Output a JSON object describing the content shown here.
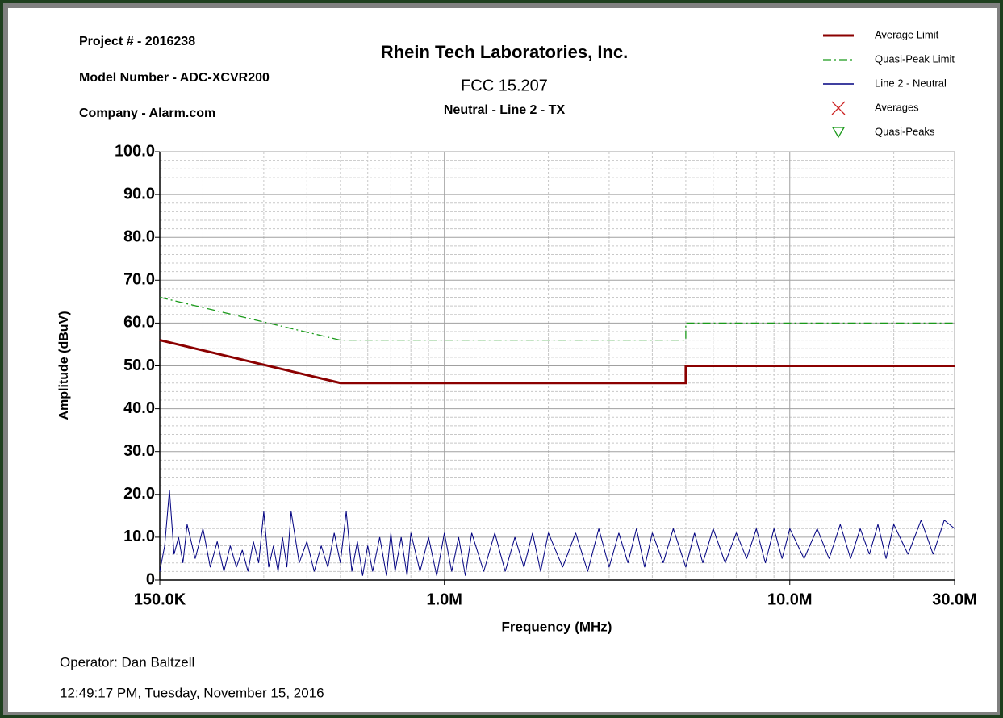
{
  "header": {
    "project": "Project # - 2016238",
    "model": "Model Number - ADC-XCVR200",
    "company": "Company - Alarm.com"
  },
  "footer": {
    "operator": "Operator: Dan Baltzell",
    "timestamp": "12:49:17 PM, Tuesday, November 15, 2016"
  },
  "chart_data": {
    "type": "line",
    "title": "Rhein Tech Laboratories, Inc.",
    "subtitle": "FCC 15.207",
    "subtitle2": "Neutral - Line 2  - TX",
    "xlabel": "Frequency (MHz)",
    "ylabel": "Amplitude (dBuV)",
    "xscale": "log",
    "xlim": [
      0.15,
      30
    ],
    "ylim": [
      0,
      100
    ],
    "xticks": [
      {
        "value": 0.15,
        "label": "150.0K"
      },
      {
        "value": 1,
        "label": "1.0M"
      },
      {
        "value": 10,
        "label": "10.0M"
      },
      {
        "value": 30,
        "label": "30.0M"
      }
    ],
    "yticks": [
      0,
      {
        "value": 10,
        "label": "10.0"
      },
      {
        "value": 20,
        "label": "20.0"
      },
      {
        "value": 30,
        "label": "30.0"
      },
      {
        "value": 40,
        "label": "40.0"
      },
      {
        "value": 50,
        "label": "50.0"
      },
      {
        "value": 60,
        "label": "60.0"
      },
      {
        "value": 70,
        "label": "70.0"
      },
      {
        "value": 80,
        "label": "80.0"
      },
      {
        "value": 90,
        "label": "90.0"
      },
      {
        "value": 100,
        "label": "100.0"
      }
    ],
    "grid": true,
    "legend": "top-right",
    "series": [
      {
        "name": "Average Limit",
        "color": "#8b0000",
        "style": "solid-thick",
        "x": [
          0.15,
          0.5,
          5,
          5,
          30
        ],
        "values": [
          56,
          46,
          46,
          50,
          50
        ]
      },
      {
        "name": "Quasi-Peak Limit",
        "color": "#1a9a1a",
        "style": "dashdot",
        "x": [
          0.15,
          0.5,
          5,
          5,
          30
        ],
        "values": [
          66,
          56,
          56,
          60,
          60
        ]
      },
      {
        "name": "Line 2 - Neutral",
        "color": "#000080",
        "style": "solid",
        "x": [
          0.15,
          0.155,
          0.16,
          0.165,
          0.17,
          0.175,
          0.18,
          0.19,
          0.2,
          0.21,
          0.22,
          0.23,
          0.24,
          0.25,
          0.26,
          0.27,
          0.28,
          0.29,
          0.3,
          0.31,
          0.32,
          0.33,
          0.34,
          0.35,
          0.36,
          0.38,
          0.4,
          0.42,
          0.44,
          0.46,
          0.48,
          0.5,
          0.52,
          0.54,
          0.56,
          0.58,
          0.6,
          0.62,
          0.65,
          0.68,
          0.7,
          0.72,
          0.75,
          0.78,
          0.8,
          0.85,
          0.9,
          0.95,
          1,
          1.05,
          1.1,
          1.15,
          1.2,
          1.3,
          1.4,
          1.5,
          1.6,
          1.7,
          1.8,
          1.9,
          2,
          2.2,
          2.4,
          2.6,
          2.8,
          3,
          3.2,
          3.4,
          3.6,
          3.8,
          4,
          4.3,
          4.6,
          5,
          5.3,
          5.6,
          6,
          6.5,
          7,
          7.5,
          8,
          8.5,
          9,
          9.5,
          10,
          11,
          12,
          13,
          14,
          15,
          16,
          17,
          18,
          19,
          20,
          22,
          24,
          26,
          28,
          30
        ],
        "values": [
          2,
          8,
          21,
          6,
          10,
          4,
          13,
          5,
          12,
          3,
          9,
          2,
          8,
          3,
          7,
          2,
          9,
          4,
          16,
          3,
          8,
          2,
          10,
          3,
          16,
          4,
          9,
          2,
          8,
          3,
          11,
          4,
          16,
          2,
          9,
          1,
          8,
          2,
          10,
          1,
          11,
          2,
          10,
          1,
          11,
          2,
          10,
          1,
          11,
          2,
          10,
          1,
          11,
          2,
          11,
          2,
          10,
          3,
          11,
          2,
          11,
          3,
          11,
          2,
          12,
          3,
          11,
          4,
          12,
          3,
          11,
          4,
          12,
          3,
          11,
          4,
          12,
          4,
          11,
          5,
          12,
          4,
          12,
          5,
          12,
          5,
          12,
          5,
          13,
          5,
          12,
          6,
          13,
          5,
          13,
          6,
          14,
          6,
          14,
          12
        ]
      },
      {
        "name": "Averages",
        "color": "#cc2222",
        "style": "x-marker",
        "x": [],
        "values": []
      },
      {
        "name": "Quasi-Peaks",
        "color": "#1a9a1a",
        "style": "triangle-marker",
        "x": [],
        "values": []
      }
    ]
  }
}
